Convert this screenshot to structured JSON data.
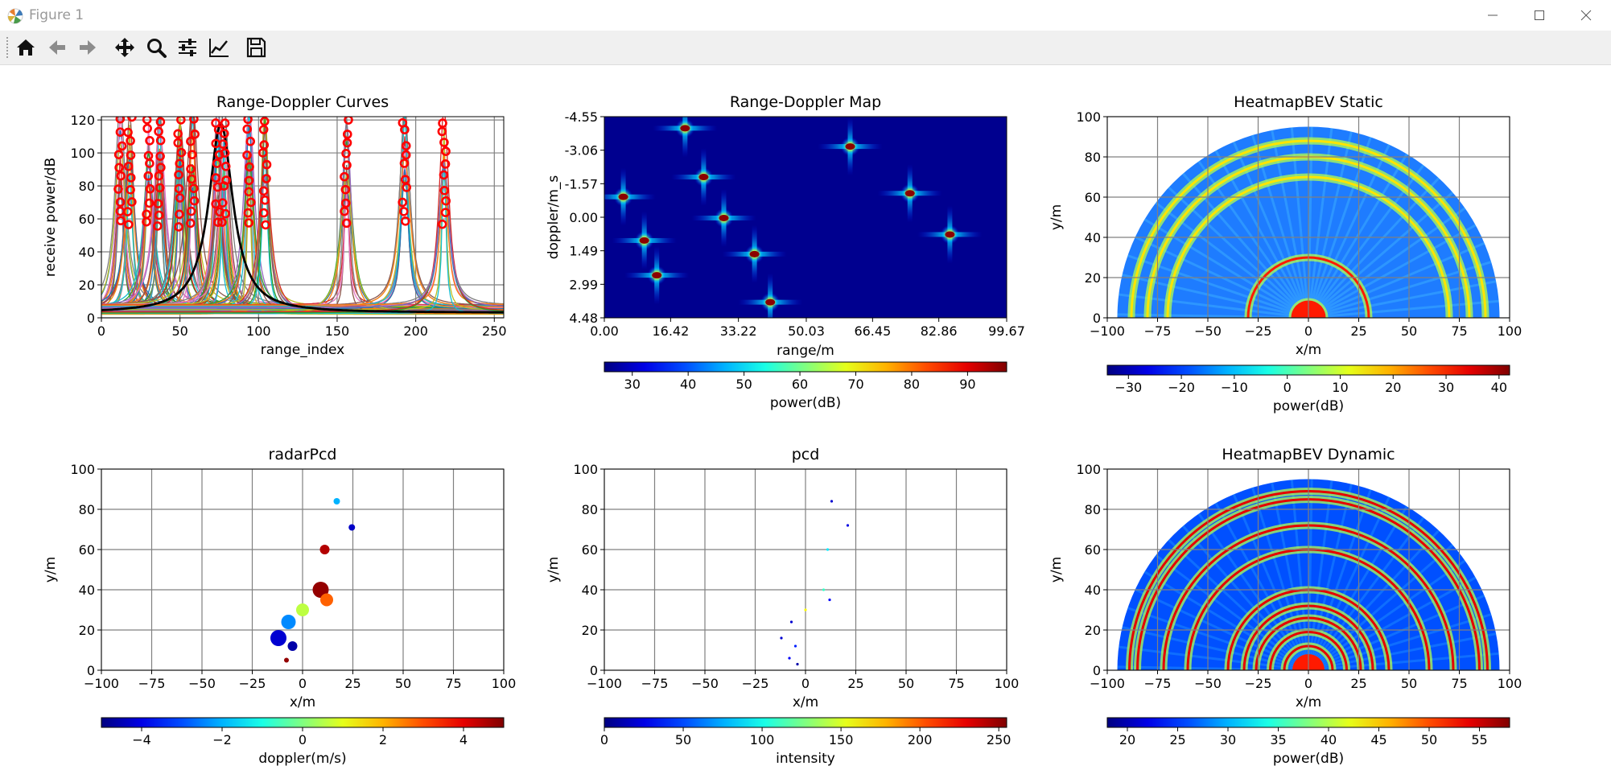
{
  "window": {
    "title": "Figure 1",
    "icons": [
      "matplotlib-icon",
      "minimize-icon",
      "maximize-icon",
      "close-icon"
    ]
  },
  "toolbar": {
    "buttons": [
      {
        "name": "home-button",
        "icon": "home-icon"
      },
      {
        "name": "back-button",
        "icon": "arrow-left-icon"
      },
      {
        "name": "forward-button",
        "icon": "arrow-right-icon"
      },
      {
        "name": "pan-button",
        "icon": "move-icon"
      },
      {
        "name": "zoom-button",
        "icon": "magnifier-icon"
      },
      {
        "name": "configure-subplots-button",
        "icon": "sliders-icon"
      },
      {
        "name": "edit-axis-button",
        "icon": "line-chart-icon"
      },
      {
        "name": "save-button",
        "icon": "floppy-disk-icon"
      }
    ]
  },
  "chart_data": [
    {
      "id": "curves",
      "type": "line",
      "title": "Range-Doppler Curves",
      "xlabel": "range_index",
      "ylabel": "receive power/dB",
      "xlim": [
        0,
        256
      ],
      "ylim": [
        0,
        122
      ],
      "xticks": [
        "0",
        "50",
        "100",
        "150",
        "200",
        "250"
      ],
      "yticks": [
        "0",
        "20",
        "40",
        "60",
        "80",
        "100",
        "120"
      ],
      "grid": true,
      "peak_range_indices": [
        12,
        18,
        30,
        37,
        50,
        58,
        74,
        78,
        94,
        104,
        156,
        193,
        218
      ],
      "detected_peaks_marker": "red-circles"
    },
    {
      "id": "rdmap",
      "type": "heatmap",
      "title": "Range-Doppler Map",
      "xlabel": "range/m",
      "ylabel": "doppler/m_s",
      "xticks": [
        "0.00",
        "16.42",
        "33.22",
        "50.03",
        "66.45",
        "82.86",
        "99.67"
      ],
      "yticks": [
        "-4.55",
        "-3.06",
        "-1.57",
        "0.00",
        "1.49",
        "2.99",
        "4.48"
      ],
      "xlim": [
        0,
        99.67
      ],
      "ylim": [
        -4.55,
        4.48
      ],
      "targets": [
        {
          "range": 4.7,
          "doppler": -0.95
        },
        {
          "range": 9.9,
          "doppler": 1.01
        },
        {
          "range": 13.0,
          "doppler": 2.57
        },
        {
          "range": 20.0,
          "doppler": -4.03
        },
        {
          "range": 24.6,
          "doppler": -1.84
        },
        {
          "range": 29.6,
          "doppler": 0.0
        },
        {
          "range": 37.2,
          "doppler": 1.62
        },
        {
          "range": 41.1,
          "doppler": 3.78
        },
        {
          "range": 60.9,
          "doppler": -3.21
        },
        {
          "range": 75.7,
          "doppler": -1.11
        },
        {
          "range": 85.6,
          "doppler": 0.74
        }
      ],
      "colorbar": {
        "label": "power(dB)",
        "ticks": [
          "30",
          "40",
          "50",
          "60",
          "70",
          "80",
          "90"
        ],
        "range": [
          25,
          97
        ]
      }
    },
    {
      "id": "bev_static",
      "type": "heatmap",
      "title": "HeatmapBEV Static",
      "xlabel": "x/m",
      "ylabel": "y/m",
      "xlim": [
        -100,
        100
      ],
      "ylim": [
        0,
        100
      ],
      "xticks": [
        "−100",
        "−75",
        "−50",
        "−25",
        "0",
        "25",
        "50",
        "75",
        "100"
      ],
      "yticks": [
        "0",
        "20",
        "40",
        "60",
        "80",
        "100"
      ],
      "grid": true,
      "ring_ranges": [
        5,
        8,
        30,
        70,
        80,
        88
      ],
      "colorbar": {
        "label": "power(dB)",
        "ticks": [
          "−30",
          "−20",
          "−10",
          "0",
          "10",
          "20",
          "30",
          "40"
        ],
        "range": [
          -34,
          42
        ]
      }
    },
    {
      "id": "radarpcd",
      "type": "scatter",
      "title": "radarPcd",
      "xlabel": "x/m",
      "ylabel": "y/m",
      "xlim": [
        -100,
        100
      ],
      "ylim": [
        0,
        100
      ],
      "xticks": [
        "−100",
        "−75",
        "−50",
        "−25",
        "0",
        "25",
        "50",
        "75",
        "100"
      ],
      "yticks": [
        "0",
        "20",
        "40",
        "60",
        "80",
        "100"
      ],
      "grid": true,
      "points": [
        {
          "x": 17,
          "y": 84,
          "doppler": -2.0,
          "size": 4
        },
        {
          "x": 24.5,
          "y": 71,
          "doppler": -4.3,
          "size": 4
        },
        {
          "x": 11,
          "y": 60,
          "doppler": 4.5,
          "size": 6
        },
        {
          "x": 9,
          "y": 40,
          "doppler": 4.8,
          "size": 10
        },
        {
          "x": 12,
          "y": 35,
          "doppler": 2.8,
          "size": 8
        },
        {
          "x": 0,
          "y": 30,
          "doppler": 0.6,
          "size": 8
        },
        {
          "x": -7,
          "y": 24,
          "doppler": -2.4,
          "size": 9
        },
        {
          "x": -12,
          "y": 16,
          "doppler": -4.2,
          "size": 10
        },
        {
          "x": -5,
          "y": 12,
          "doppler": -4.6,
          "size": 6
        },
        {
          "x": -8,
          "y": 5,
          "doppler": 4.8,
          "size": 3
        }
      ],
      "colorbar": {
        "label": "doppler(m/s)",
        "ticks": [
          "−4",
          "−2",
          "0",
          "2",
          "4"
        ],
        "range": [
          -5,
          5
        ]
      }
    },
    {
      "id": "pcd",
      "type": "scatter",
      "title": "pcd",
      "xlabel": "x/m",
      "ylabel": "y/m",
      "xlim": [
        -100,
        100
      ],
      "ylim": [
        0,
        100
      ],
      "xticks": [
        "−100",
        "−75",
        "−50",
        "−25",
        "0",
        "25",
        "50",
        "75",
        "100"
      ],
      "yticks": [
        "0",
        "20",
        "40",
        "60",
        "80",
        "100"
      ],
      "grid": true,
      "points": [
        {
          "x": 13,
          "y": 84,
          "intensity": 20
        },
        {
          "x": 21,
          "y": 72,
          "intensity": 25
        },
        {
          "x": 11,
          "y": 60,
          "intensity": 90
        },
        {
          "x": 9,
          "y": 40,
          "intensity": 110
        },
        {
          "x": 12,
          "y": 35,
          "intensity": 30
        },
        {
          "x": 0,
          "y": 30,
          "intensity": 160
        },
        {
          "x": -7,
          "y": 24,
          "intensity": 20
        },
        {
          "x": -12,
          "y": 16,
          "intensity": 20
        },
        {
          "x": -5,
          "y": 12,
          "intensity": 40
        },
        {
          "x": -8,
          "y": 6,
          "intensity": 30
        },
        {
          "x": -4,
          "y": 3,
          "intensity": 10
        }
      ],
      "colorbar": {
        "label": "intensity",
        "ticks": [
          "0",
          "50",
          "100",
          "150",
          "200",
          "250"
        ],
        "range": [
          0,
          255
        ]
      }
    },
    {
      "id": "bev_dynamic",
      "type": "heatmap",
      "title": "HeatmapBEV Dynamic",
      "xlabel": "x/m",
      "ylabel": "y/m",
      "xlim": [
        -100,
        100
      ],
      "ylim": [
        0,
        100
      ],
      "xticks": [
        "−100",
        "−75",
        "−50",
        "−25",
        "0",
        "25",
        "50",
        "75",
        "100"
      ],
      "yticks": [
        "0",
        "20",
        "40",
        "60",
        "80",
        "100"
      ],
      "grid": true,
      "ring_ranges": [
        5,
        12,
        19,
        26,
        32,
        40,
        60,
        72,
        85,
        89
      ],
      "colorbar": {
        "label": "power(dB)",
        "ticks": [
          "20",
          "25",
          "30",
          "35",
          "40",
          "45",
          "50",
          "55"
        ],
        "range": [
          18,
          58
        ]
      }
    }
  ]
}
